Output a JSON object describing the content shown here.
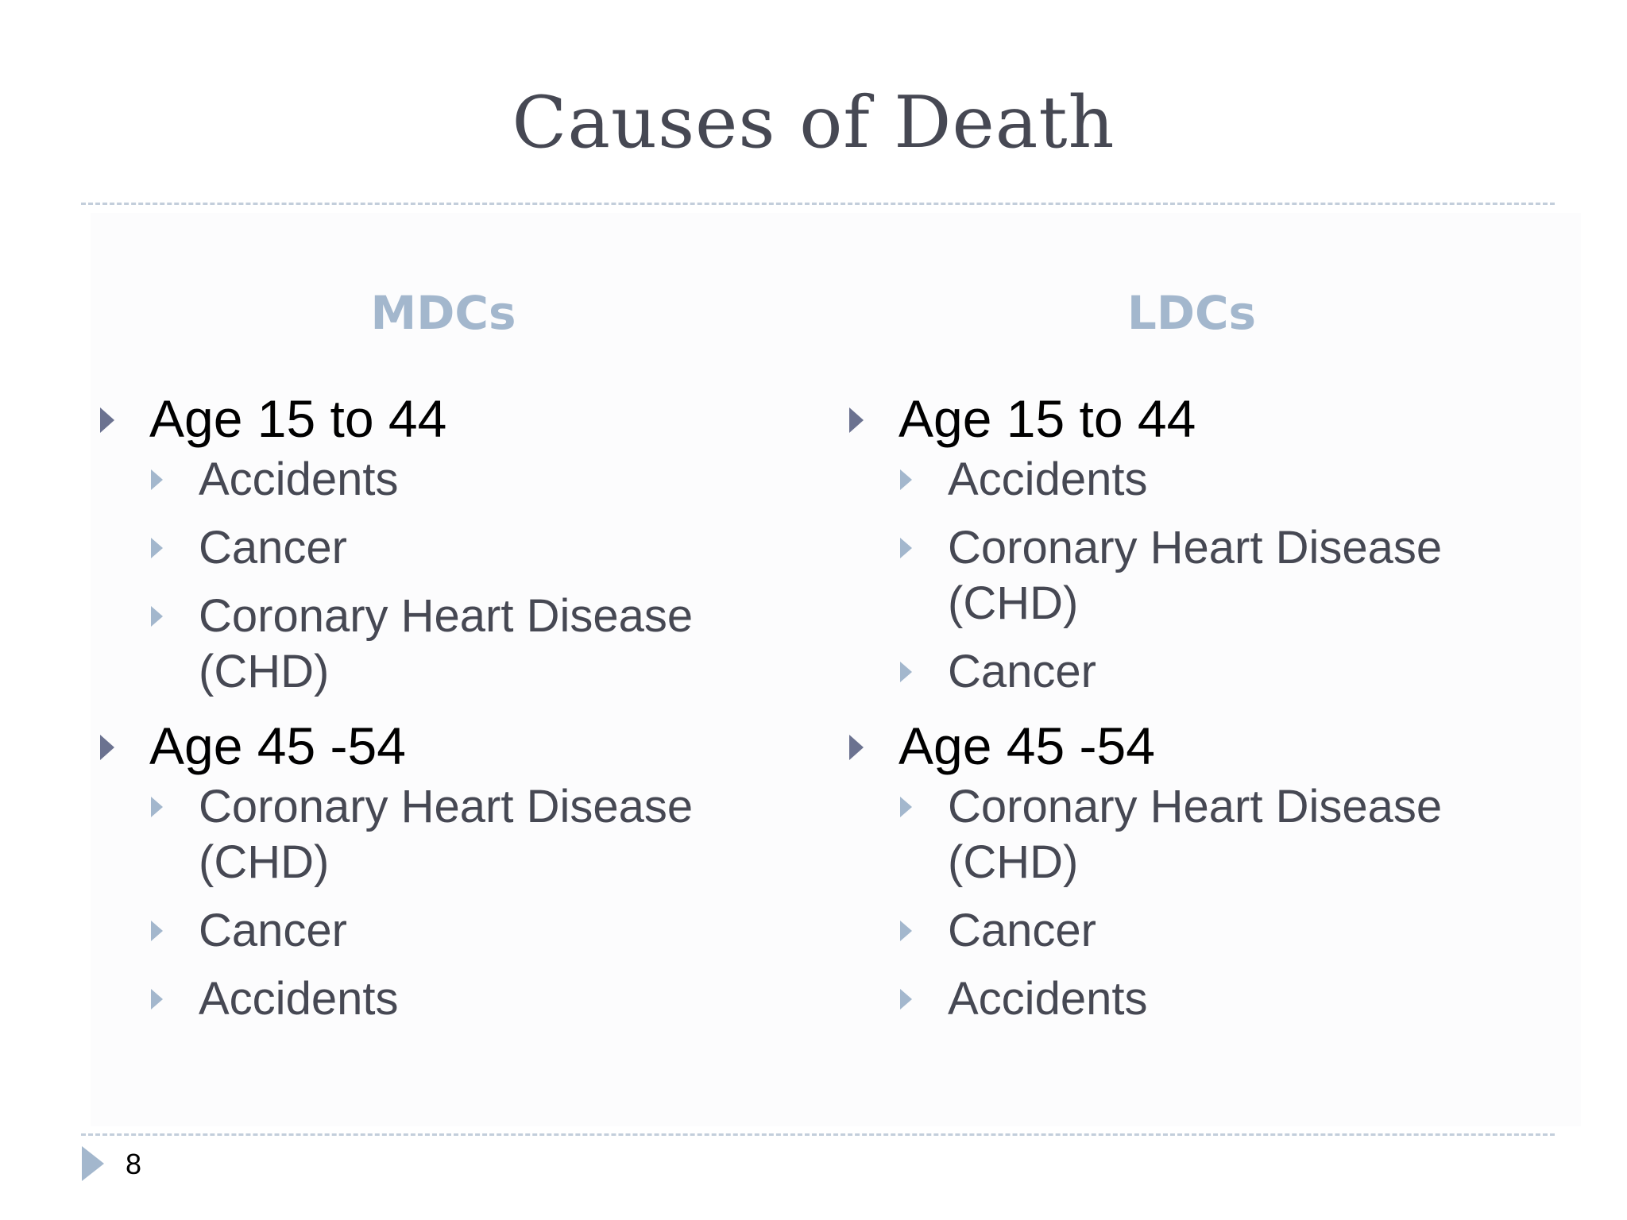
{
  "slide": {
    "title": "Causes of Death",
    "page_number": "8",
    "colors": {
      "title": "#464853",
      "header": "#a3b7cd",
      "main_bullet": "#6b7290",
      "sub_bullet": "#a3b7cd",
      "rule": "#c3cedb"
    }
  },
  "columns": [
    {
      "header": "MDCs",
      "groups": [
        {
          "label": "Age 15 to 44",
          "items": [
            "Accidents",
            "Cancer",
            "Coronary Heart Disease (CHD)"
          ]
        },
        {
          "label": "Age 45 -54",
          "items": [
            "Coronary Heart Disease (CHD)",
            "Cancer",
            "Accidents"
          ]
        }
      ]
    },
    {
      "header": "LDCs",
      "groups": [
        {
          "label": "Age 15 to 44",
          "items": [
            "Accidents",
            "Coronary Heart Disease (CHD)",
            "Cancer"
          ]
        },
        {
          "label": "Age 45 -54",
          "items": [
            "Coronary Heart Disease (CHD)",
            "Cancer",
            "Accidents"
          ]
        }
      ]
    }
  ]
}
